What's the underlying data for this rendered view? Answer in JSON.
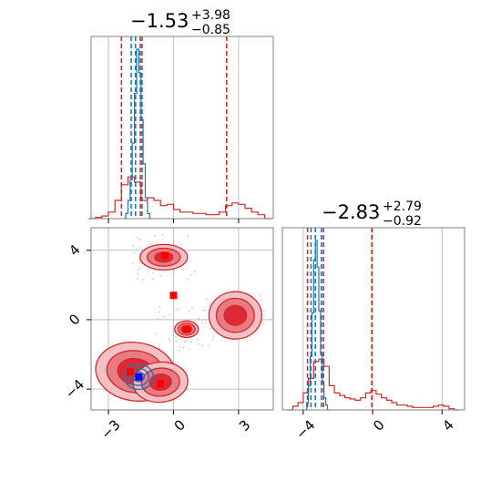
{
  "chart_data": [
    {
      "type": "histogram",
      "panel": "top-left marginal (parameter 1)",
      "title": {
        "median": "−1.53",
        "plus": "+3.98",
        "minus": "−0.85"
      },
      "xlim": [
        -3.8,
        4.6
      ],
      "grid": true,
      "series": [
        {
          "name": "red",
          "color": "#d62728",
          "quantiles": [
            -2.4,
            -1.53,
            2.45
          ],
          "bins_x": [
            -3.9,
            -3.6,
            -3.3,
            -3.0,
            -2.7,
            -2.4,
            -2.1,
            -1.8,
            -1.5,
            -1.2,
            -0.9,
            -0.6,
            -0.3,
            0.0,
            0.3,
            0.6,
            0.9,
            1.2,
            1.5,
            1.8,
            2.1,
            2.4,
            2.7,
            3.0,
            3.3,
            3.6,
            3.9,
            4.2
          ],
          "bins_y": [
            0,
            1,
            2,
            5,
            14,
            26,
            32,
            28,
            14,
            16,
            14,
            10,
            11,
            7,
            5,
            5,
            4,
            4,
            3,
            3,
            5,
            10,
            12,
            11,
            8,
            5,
            3,
            0
          ]
        },
        {
          "name": "blue",
          "color": "#1f77b4",
          "quantiles": [
            -1.95,
            -1.75,
            -1.45
          ],
          "bins_x": [
            -2.3,
            -2.2,
            -2.1,
            -2.0,
            -1.9,
            -1.8,
            -1.7,
            -1.6,
            -1.5,
            -1.4,
            -1.3,
            -1.2,
            -1.1
          ],
          "bins_y": [
            0,
            4,
            14,
            30,
            58,
            96,
            130,
            112,
            76,
            42,
            16,
            4,
            0
          ]
        }
      ]
    },
    {
      "type": "contour",
      "panel": "bottom-left 2D density",
      "xlim": [
        -3.8,
        4.6
      ],
      "ylim": [
        -5.2,
        5.3
      ],
      "xticks": [
        "−3",
        "0",
        "3"
      ],
      "yticks": [
        "4",
        "0",
        "−4"
      ],
      "grid": true,
      "red_modes": [
        {
          "x": -1.7,
          "y": -3.2
        },
        {
          "x": -0.4,
          "y": 3.6
        },
        {
          "x": 2.8,
          "y": 0.2
        },
        {
          "x": 0.6,
          "y": -0.55
        }
      ],
      "red_markers": [
        {
          "x": -0.4,
          "y": 3.7
        },
        {
          "x": 0.0,
          "y": 1.4
        },
        {
          "x": 0.6,
          "y": -0.55
        },
        {
          "x": -0.6,
          "y": -3.7
        },
        {
          "x": -2.0,
          "y": -3.0
        }
      ],
      "blue_marker": {
        "x": -1.6,
        "y": -3.3
      }
    },
    {
      "type": "histogram",
      "panel": "bottom-right marginal (parameter 2)",
      "title": {
        "median": "−2.83",
        "plus": "+2.79",
        "minus": "−0.92"
      },
      "xlim": [
        -5.2,
        5.3
      ],
      "xticks": [
        "−4",
        "0",
        "4"
      ],
      "grid": true,
      "series": [
        {
          "name": "red",
          "color": "#d62728",
          "quantiles": [
            -3.75,
            -2.83,
            -0.05
          ],
          "bins_x": [
            -4.9,
            -4.6,
            -4.3,
            -4.0,
            -3.7,
            -3.4,
            -3.1,
            -2.8,
            -2.5,
            -2.2,
            -1.9,
            -1.6,
            -1.3,
            -1.0,
            -0.7,
            -0.4,
            -0.1,
            0.2,
            0.5,
            0.8,
            1.1,
            1.4,
            1.7,
            2.0,
            2.3,
            2.6,
            2.9,
            3.2,
            3.5,
            3.8,
            4.1,
            4.4,
            4.7
          ],
          "bins_y": [
            0,
            3,
            6,
            14,
            26,
            40,
            42,
            36,
            20,
            14,
            12,
            10,
            9,
            8,
            10,
            14,
            16,
            13,
            10,
            8,
            6,
            4,
            4,
            3,
            2,
            2,
            2,
            2,
            3,
            4,
            3,
            1,
            0
          ]
        },
        {
          "name": "blue",
          "color": "#1f77b4",
          "quantiles": [
            -3.55,
            -3.3,
            -2.95
          ],
          "bins_x": [
            -3.9,
            -3.8,
            -3.7,
            -3.6,
            -3.5,
            -3.4,
            -3.3,
            -3.2,
            -3.1,
            -3.0,
            -2.9,
            -2.8,
            -2.7,
            -2.6
          ],
          "bins_y": [
            0,
            6,
            20,
            44,
            80,
            124,
            140,
            118,
            82,
            46,
            22,
            10,
            4,
            0
          ]
        }
      ]
    }
  ]
}
